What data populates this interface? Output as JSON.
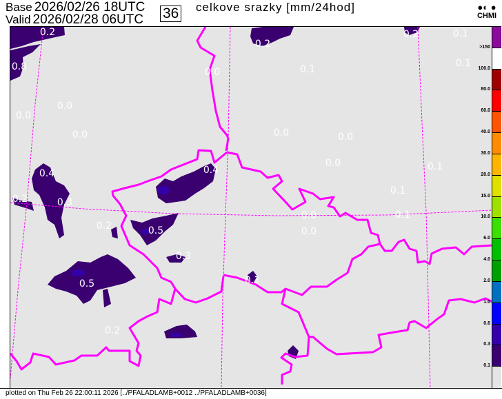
{
  "header": {
    "base_label": "Base",
    "base_value": "2026/02/26 18UTC",
    "valid_label": "Valid",
    "valid_value": "2026/02/28 06UTC",
    "forecast_step": "36",
    "title": "celkove srazky [mm/24hod]",
    "logo_text": "CHMI"
  },
  "map": {
    "border_color": "#ff00ff",
    "precip_color": "#3a0070",
    "precip_core_color": "#3300aa",
    "value_labels": [
      "0.2",
      "0.8",
      "0.0",
      "0.1",
      "0.2",
      "0.2",
      "0.1",
      "0.1",
      "0.0",
      "0.0",
      "0.0",
      "0.0",
      "0.0",
      "0.0",
      "0.0",
      "0.1",
      "0.1",
      "0.1",
      "0.4",
      "0.2",
      "0.3",
      "0.2",
      "0.4",
      "0.5",
      "0.3",
      "0.0",
      "0.1",
      "0.5",
      "0.2"
    ]
  },
  "legend": {
    "labels": [
      ">150",
      "100.0",
      "80.0",
      "60.0",
      "40.0",
      "30.0",
      "20.0",
      "15.0",
      "10.0",
      "6.0",
      "4.0",
      "2.0",
      "1.0",
      "0.6",
      "0.3",
      "0.1"
    ],
    "colors": [
      "#8b0b9b",
      "#ffffff",
      "#a00000",
      "#ff0000",
      "#ff5500",
      "#ff8c00",
      "#ffb400",
      "#e0e000",
      "#a0e000",
      "#3ce000",
      "#00c000",
      "#00a000",
      "#0070c0",
      "#0000ff",
      "#3300aa",
      "#3a0070",
      "#e5e5e5"
    ]
  },
  "footer": {
    "text": "plotted on Thu Feb 26 22:00:11 2026 [../PFALADLAMB+0012 ../PFALADLAMB+0036]"
  }
}
